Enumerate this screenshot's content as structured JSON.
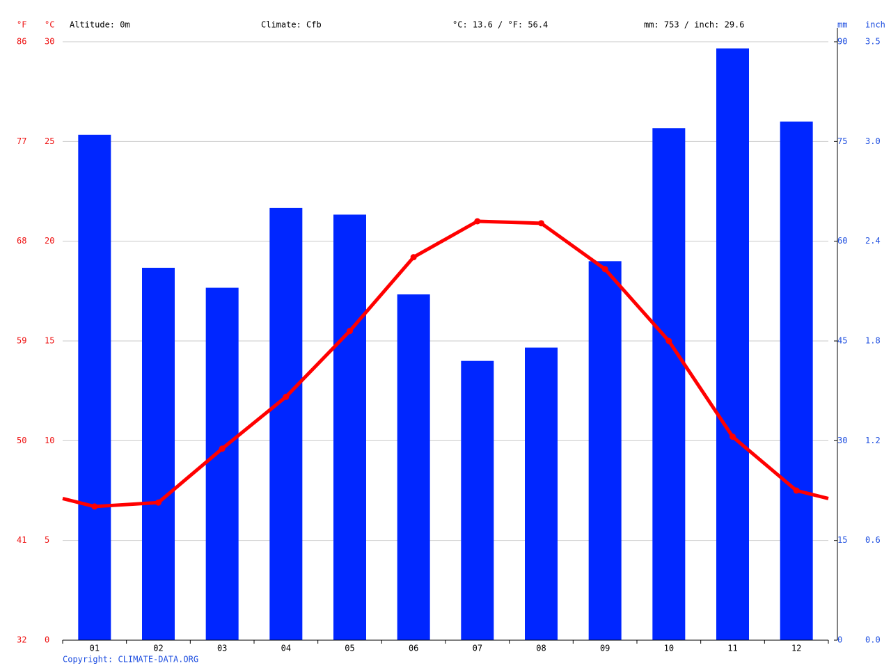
{
  "chart_data": {
    "type": "climate",
    "header": [
      "Altitude: 0m",
      "Climate: Cfb",
      "°C: 13.6 / °F: 56.4",
      "mm: 753 / inch: 29.6"
    ],
    "copyright": "Copyright: CLIMATE-DATA.ORG",
    "y_unit": "°C",
    "y_unit_alt": "°F",
    "y2_unit": "mm",
    "y2_unit_alt": "inch",
    "categories": [
      "01",
      "02",
      "03",
      "04",
      "05",
      "06",
      "07",
      "08",
      "09",
      "10",
      "11",
      "12"
    ],
    "series": [
      {
        "kind": "bar",
        "axis": "y2",
        "color": "#0026ff",
        "values": [
          76,
          56,
          53,
          65,
          64,
          52,
          42,
          44,
          57,
          77,
          89,
          78
        ]
      },
      {
        "kind": "line",
        "color": "#ff0000",
        "values": [
          6.7,
          6.9,
          9.6,
          12.2,
          15.5,
          19.2,
          21.0,
          20.9,
          18.6,
          15.0,
          10.2,
          7.5
        ]
      }
    ],
    "ylim": [
      0,
      30
    ],
    "yticks": [
      0,
      5,
      10,
      15,
      20,
      25,
      30
    ],
    "yticks_alt": [
      {
        "value": 0,
        "label": "32"
      },
      {
        "value": 5,
        "label": "41"
      },
      {
        "value": 10,
        "label": "50"
      },
      {
        "value": 15,
        "label": "59"
      },
      {
        "value": 20,
        "label": "68"
      },
      {
        "value": 25,
        "label": "77"
      },
      {
        "value": 30,
        "label": "86"
      }
    ],
    "y2lim": [
      0,
      90
    ],
    "y2ticks": [
      0,
      15,
      30,
      45,
      60,
      75,
      90
    ],
    "y2ticks_alt": [
      {
        "value": 0,
        "label": "0.0"
      },
      {
        "value": 15,
        "label": "0.6"
      },
      {
        "value": 30,
        "label": "1.2"
      },
      {
        "value": 45,
        "label": "1.8"
      },
      {
        "value": 60,
        "label": "2.4"
      },
      {
        "value": 75,
        "label": "3.0"
      },
      {
        "value": 90,
        "label": "3.5"
      }
    ],
    "grid": true
  }
}
